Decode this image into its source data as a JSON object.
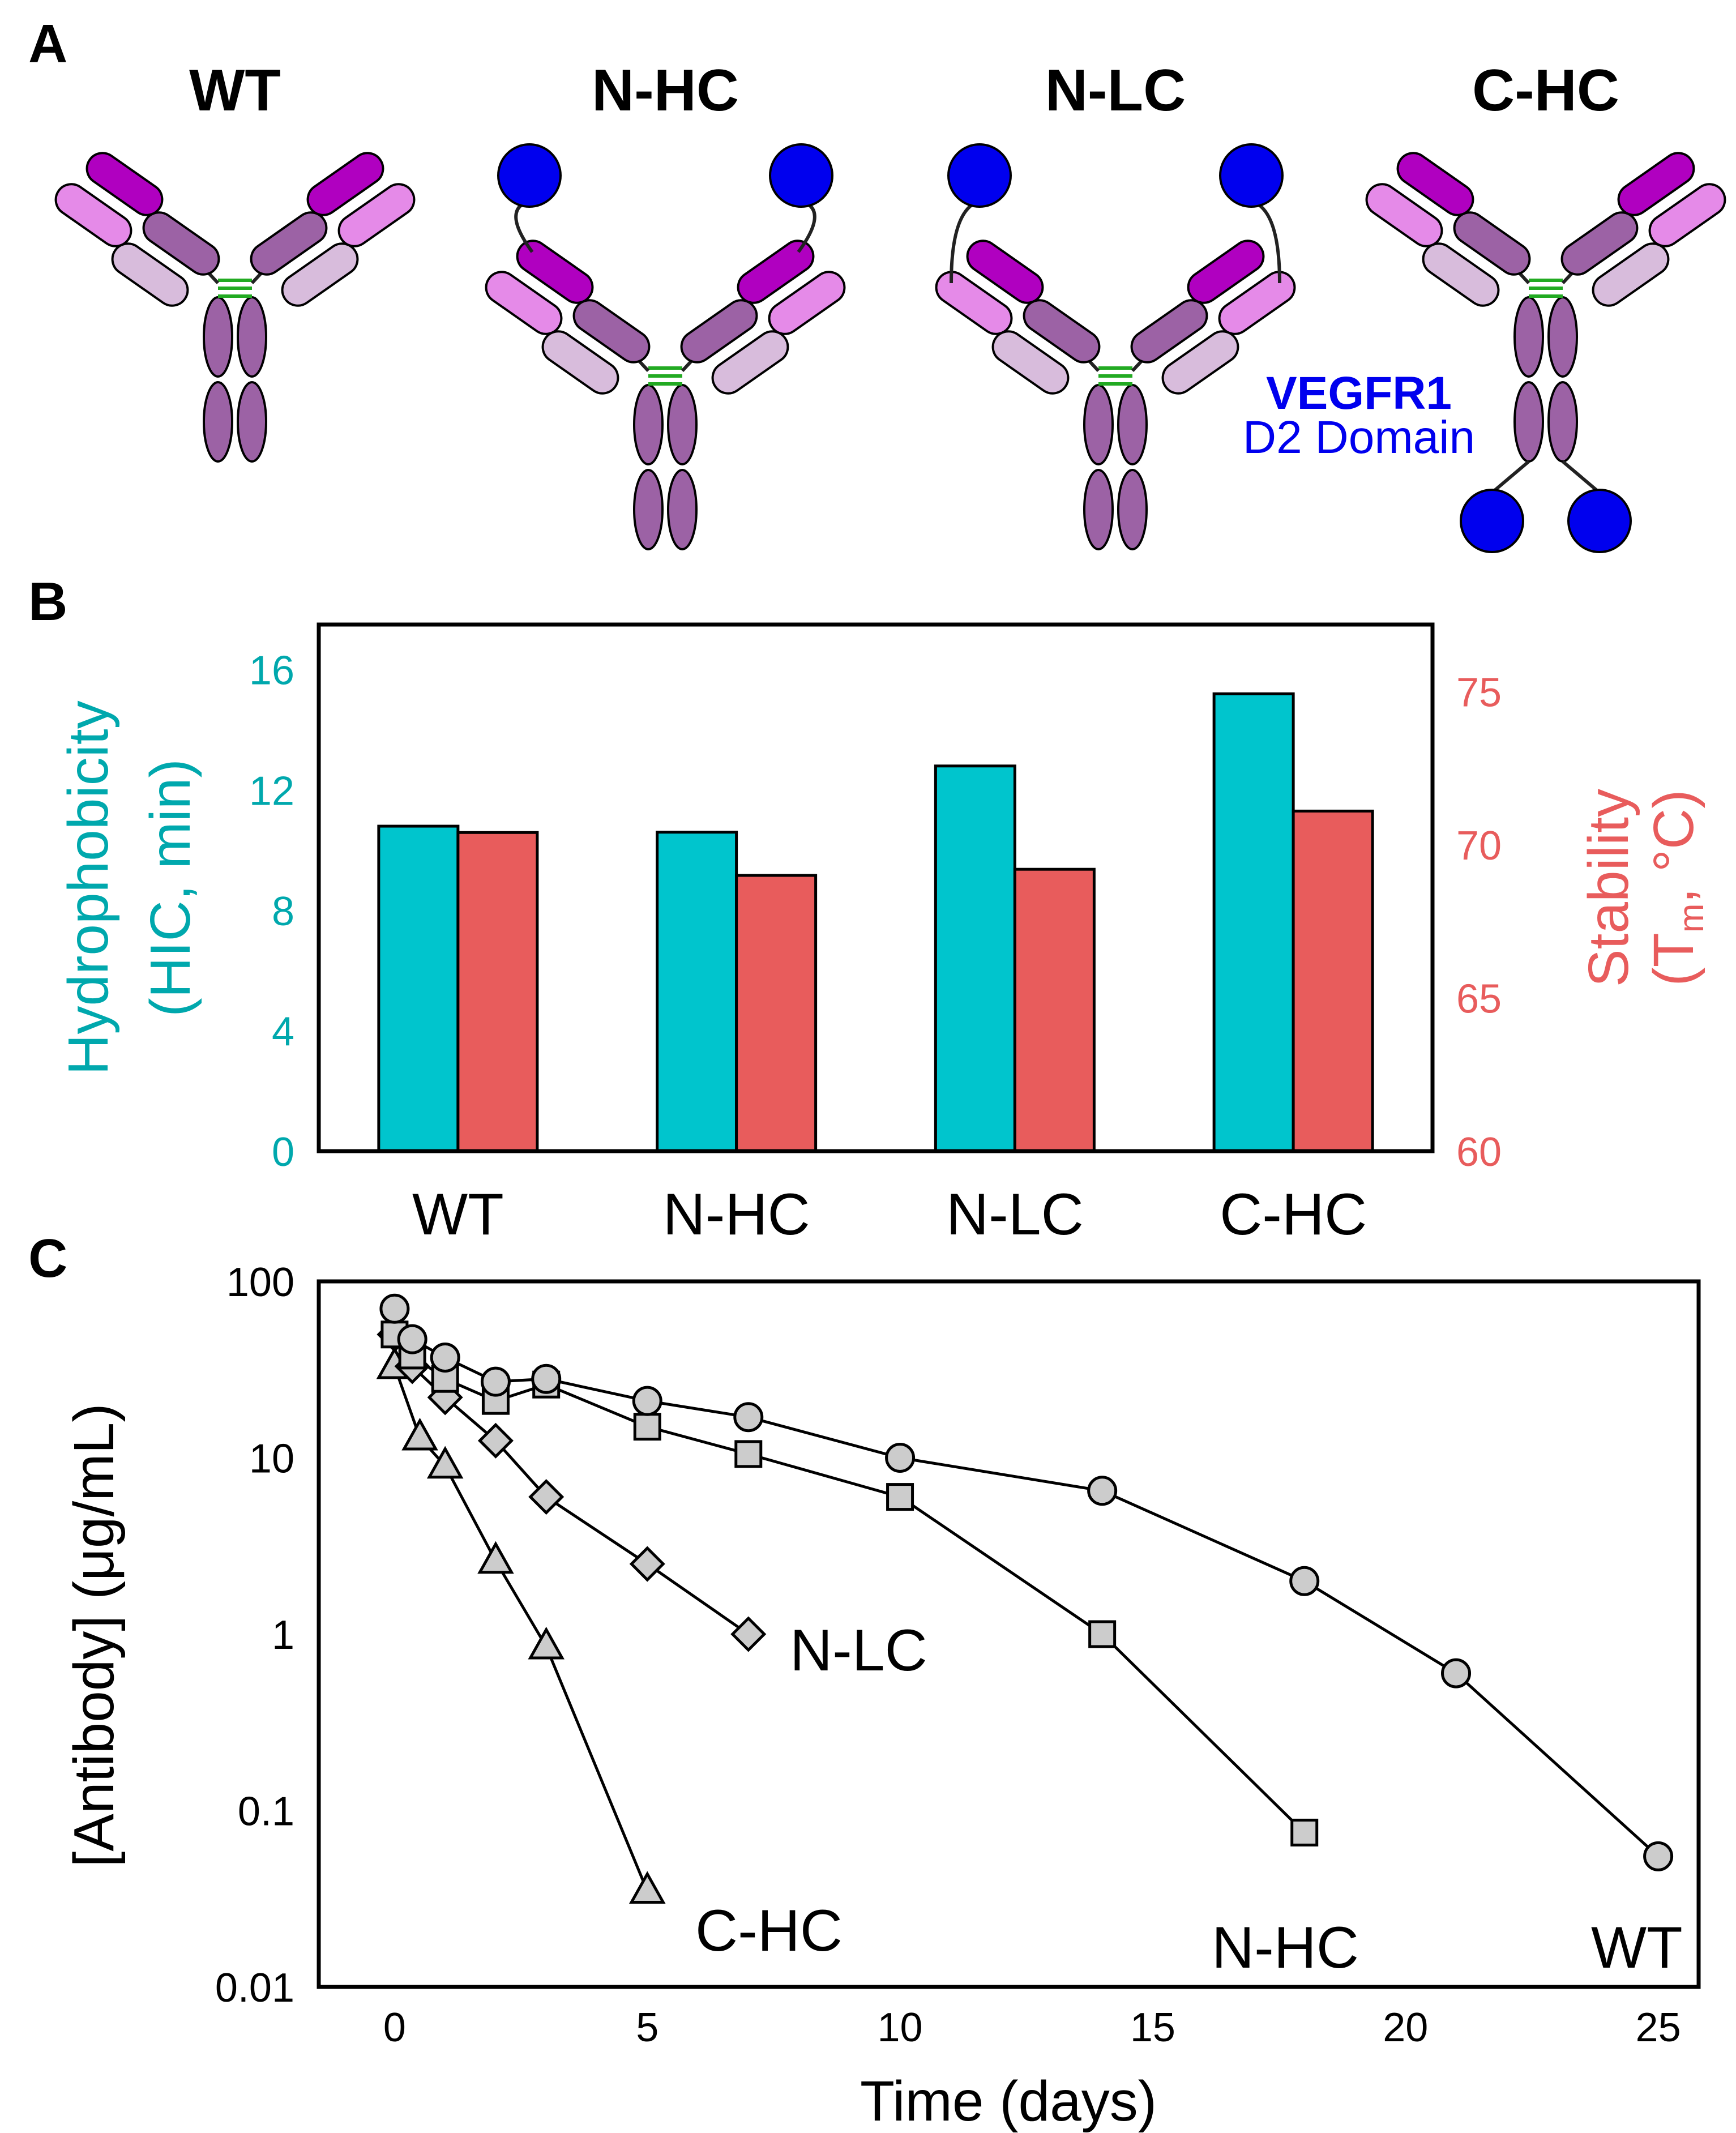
{
  "panel_labels": {
    "a": "A",
    "b": "B",
    "c": "C"
  },
  "colors": {
    "teal": "#00c5cd",
    "red": "#e85c5c",
    "blue": "#0000ee",
    "marker": "#cccccc",
    "purple": "#9c62a5",
    "magenta": "#b000c0",
    "pink": "#e58ae8",
    "lavender": "#d8bcdc"
  },
  "panelA": {
    "formats": [
      {
        "name": "WT",
        "fusion": "none"
      },
      {
        "name": "N-HC",
        "fusion": "heavy-chain-N-terminus"
      },
      {
        "name": "N-LC",
        "fusion": "light-chain-N-terminus"
      },
      {
        "name": "C-HC",
        "fusion": "heavy-chain-C-terminus"
      }
    ],
    "legend_line1": "VEGFR1",
    "legend_line2": "D2 Domain"
  },
  "chart_data": [
    {
      "type": "bar",
      "categories": [
        "WT",
        "N-HC",
        "N-LC",
        "C-HC"
      ],
      "series": [
        {
          "name": "Hydrophobicity (HIC, min)",
          "axis": "left",
          "color": "#00c5cd",
          "values": [
            10.8,
            10.6,
            12.8,
            15.2
          ]
        },
        {
          "name": "Stability (Tm, °C)",
          "axis": "right",
          "color": "#e85c5c",
          "values": [
            70.4,
            69.0,
            69.2,
            71.1
          ]
        }
      ],
      "ylabel_left_line1": "Hydrophobicity",
      "ylabel_left_line2": "(HIC, min)",
      "ylabel_right_line1": "Stability",
      "ylabel_right_T": "(T",
      "ylabel_right_sub": "m",
      "ylabel_right_rest": ", °C)",
      "ylim_left": [
        0,
        17.5
      ],
      "ylim_right": [
        60,
        77.1875
      ],
      "yticks_left": [
        0,
        4,
        8,
        12,
        16
      ],
      "yticks_right": [
        60,
        65,
        70,
        75
      ]
    },
    {
      "type": "line",
      "yscale": "log",
      "xlabel": "Time (days)",
      "ylabel": "[Antibody] (μg/mL)",
      "xlim": [
        -1.5,
        25.8
      ],
      "ylim": [
        0.01,
        100
      ],
      "xticks": [
        0,
        5,
        10,
        15,
        20,
        25
      ],
      "yticks": [
        0.01,
        0.1,
        1,
        10,
        100
      ],
      "ytick_labels": [
        "0.01",
        "0.1",
        "1",
        "10",
        "100"
      ],
      "series": [
        {
          "name": "WT",
          "marker": "circle",
          "x": [
            0,
            0.35,
            1,
            2,
            3,
            5,
            7,
            10,
            14,
            18,
            21,
            25
          ],
          "y": [
            70,
            47,
            37,
            27,
            28,
            21,
            17,
            10,
            6.5,
            2.0,
            0.6,
            0.055
          ]
        },
        {
          "name": "N-HC",
          "marker": "square",
          "x": [
            0,
            0.35,
            1,
            2,
            3,
            5,
            7,
            10,
            14,
            18
          ],
          "y": [
            50,
            38,
            28,
            21,
            26,
            15,
            10.5,
            6.0,
            1.0,
            0.075
          ]
        },
        {
          "name": "N-LC",
          "marker": "diamond",
          "x": [
            0,
            0.35,
            1,
            2,
            3,
            5,
            7
          ],
          "y": [
            50,
            33,
            22,
            12.5,
            6.0,
            2.5,
            1.0
          ]
        },
        {
          "name": "C-HC",
          "marker": "triangle",
          "x": [
            0,
            0.5,
            1,
            2,
            3,
            5
          ],
          "y": [
            33,
            13,
            9.0,
            2.6,
            0.85,
            0.035
          ]
        }
      ],
      "annotations": [
        "N-LC",
        "C-HC",
        "N-HC",
        "WT"
      ]
    }
  ]
}
